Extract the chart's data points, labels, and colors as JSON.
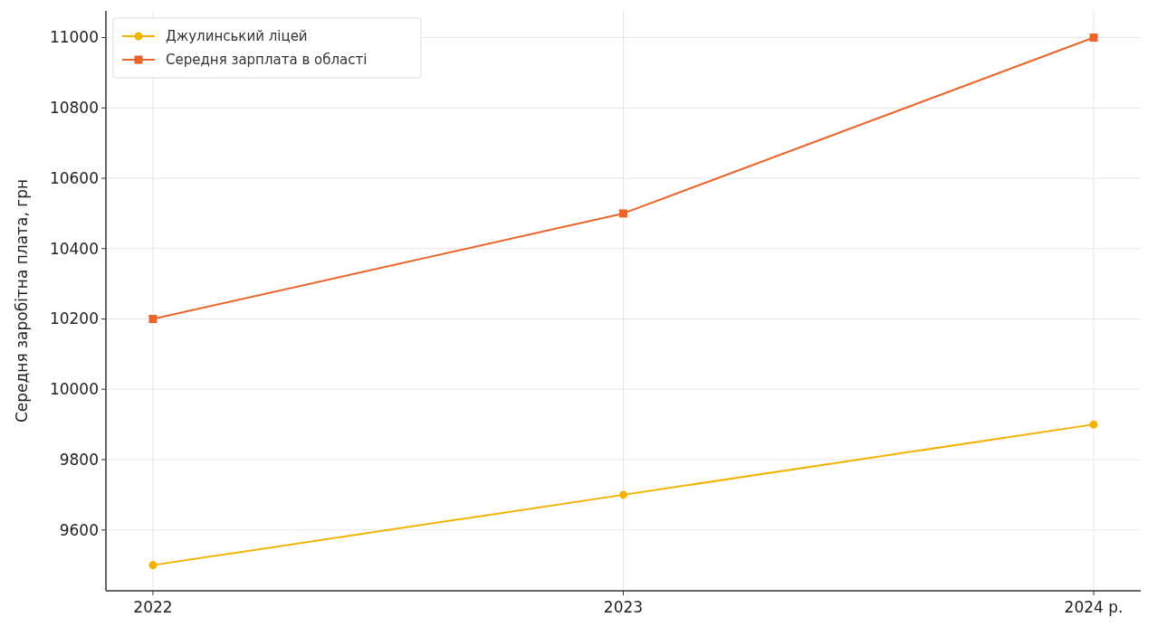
{
  "chart_data": {
    "type": "line",
    "ylabel": "Середня заробітна плата, грн",
    "categories": [
      "2022",
      "2023",
      "2024 р."
    ],
    "series": [
      {
        "name": "Джулинський ліцей",
        "color": "#f2b200",
        "marker": "circle",
        "values": [
          9500,
          9700,
          9900
        ]
      },
      {
        "name": "Середня зарплата в області",
        "color": "#e8652b",
        "marker": "square",
        "values": [
          10200,
          10500,
          11000
        ]
      }
    ],
    "ylim": [
      9427,
      11076
    ],
    "yticks": [
      9600,
      9800,
      10000,
      10200,
      10400,
      10600,
      10800,
      11000
    ],
    "grid": true,
    "legend": "top left"
  }
}
